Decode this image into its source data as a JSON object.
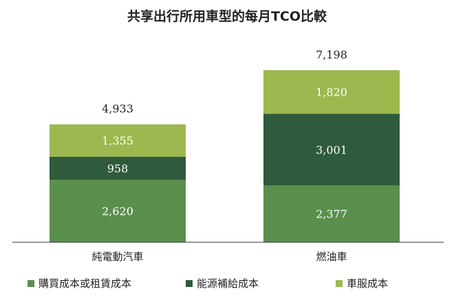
{
  "chart_data": {
    "type": "bar",
    "stacked": true,
    "title": "共享出行所用車型的每月TCO比較",
    "categories": [
      "純電動汽車",
      "燃油車"
    ],
    "series": [
      {
        "name": "購買成本或租賃成本",
        "values": [
          2620,
          2377
        ],
        "labels": [
          "2,620",
          "2,377"
        ],
        "color": "#5a8f4e"
      },
      {
        "name": "能源補給成本",
        "values": [
          958,
          3001
        ],
        "labels": [
          "958",
          "3,001"
        ],
        "color": "#2f5a3c"
      },
      {
        "name": "車服成本",
        "values": [
          1355,
          1820
        ],
        "labels": [
          "1,355",
          "1,820"
        ],
        "color": "#9cb84f"
      }
    ],
    "totals": [
      4933,
      7198
    ],
    "total_labels": [
      "4,933",
      "7,198"
    ],
    "ylim": [
      0,
      7600
    ],
    "grid": false,
    "legend_position": "bottom"
  }
}
